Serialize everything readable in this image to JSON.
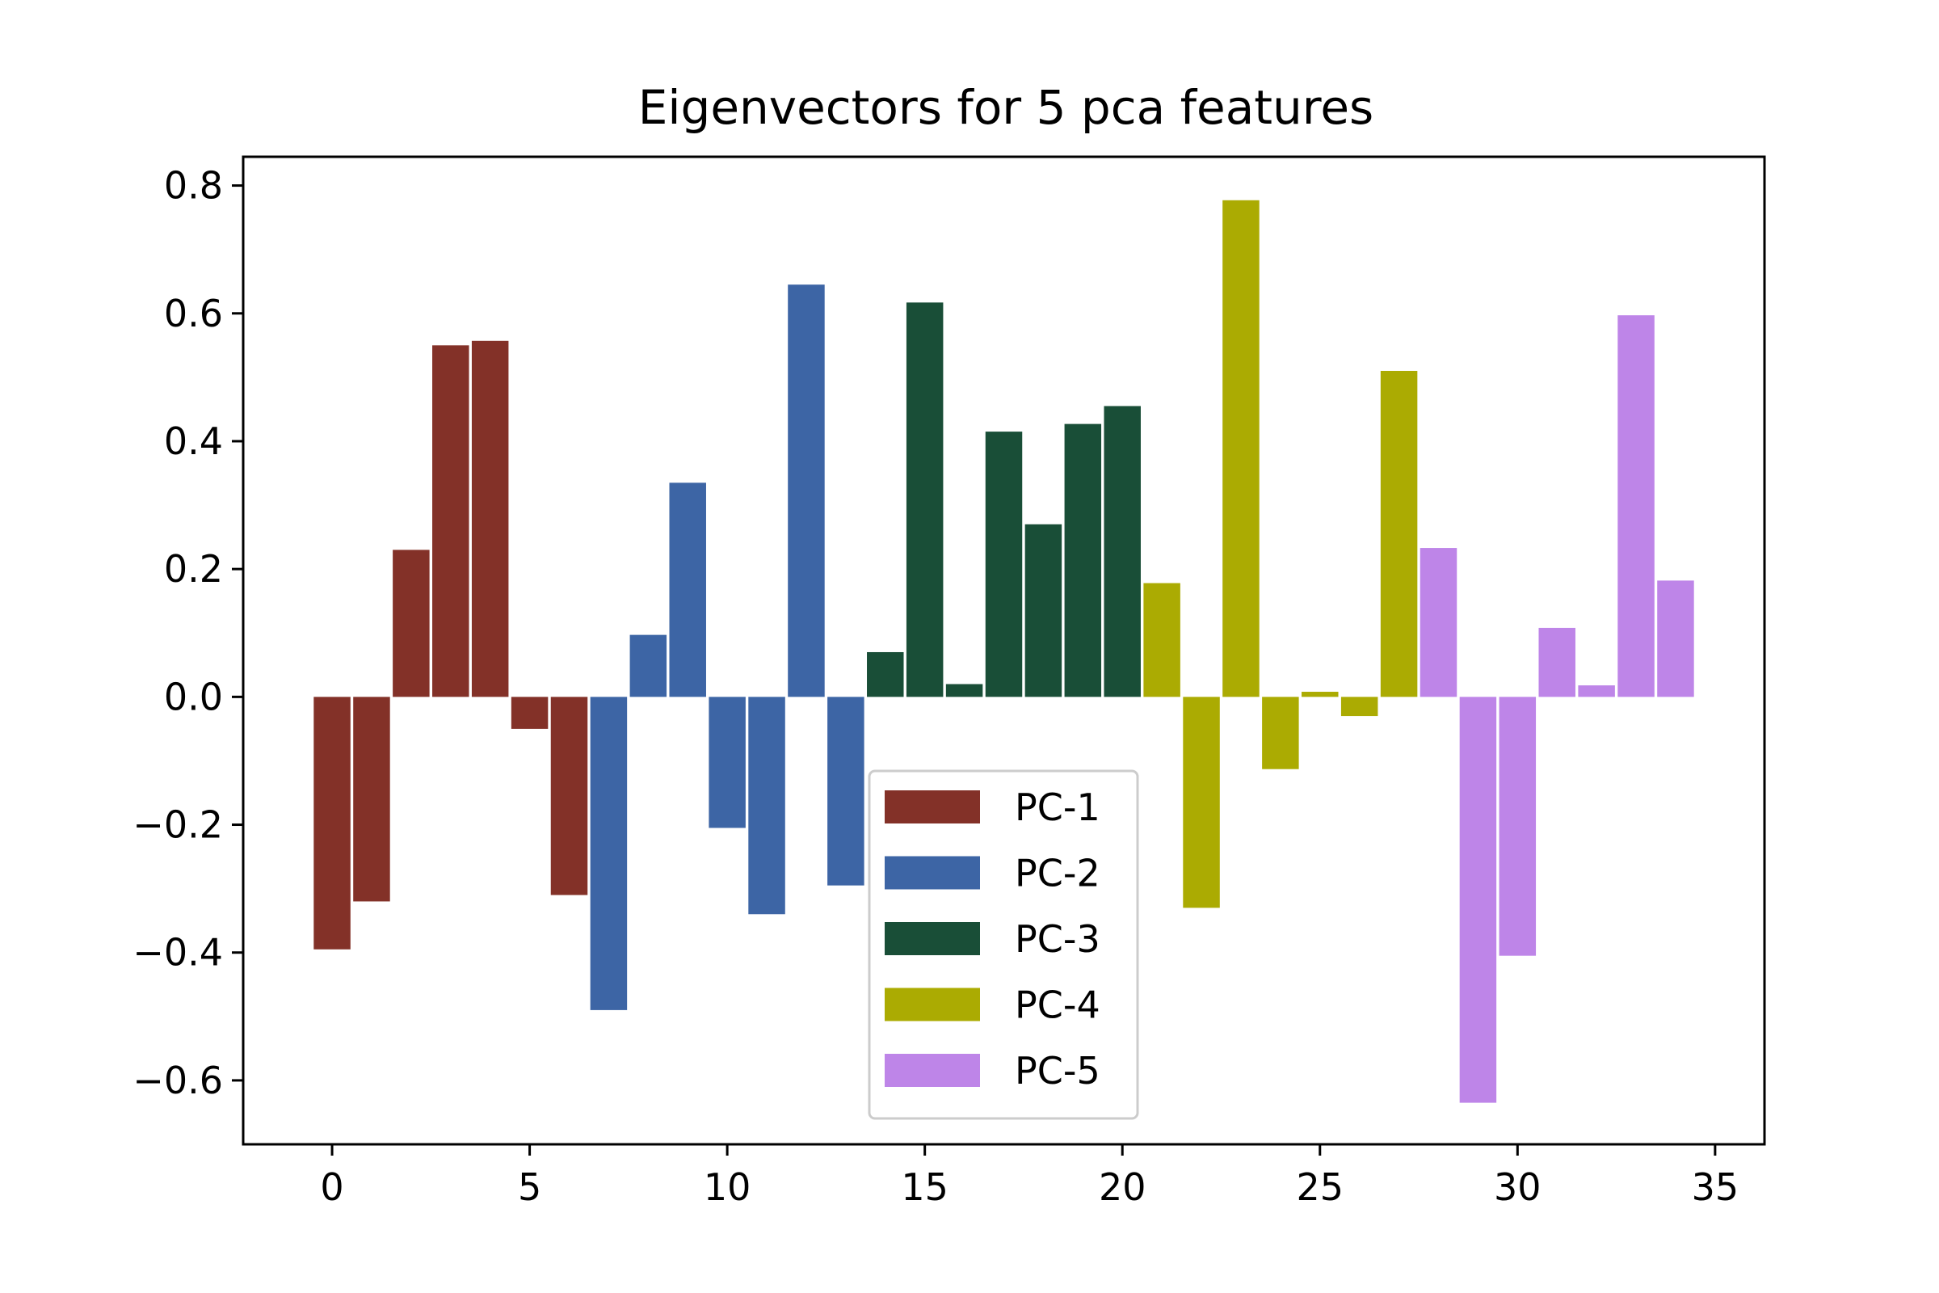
{
  "chart_data": {
    "type": "bar",
    "title": "Eigenvectors for 5 pca features",
    "xlabel": "",
    "ylabel": "",
    "xlim": [
      -2.25,
      36.25
    ],
    "ylim": [
      -0.7,
      0.845
    ],
    "x_ticks": [
      0,
      5,
      10,
      15,
      20,
      25,
      30,
      35
    ],
    "x_tick_labels": [
      "0",
      "5",
      "10",
      "15",
      "20",
      "25",
      "30",
      "35"
    ],
    "y_ticks": [
      0.8,
      0.6,
      0.4,
      0.2,
      0.0,
      -0.2,
      -0.4,
      -0.6
    ],
    "y_tick_labels": [
      "0.8",
      "0.6",
      "0.4",
      "0.2",
      "0.0",
      "−0.2",
      "−0.4",
      "−0.6"
    ],
    "grid": false,
    "legend_position": "lower-center",
    "series": [
      {
        "name": "PC-1",
        "color": "#833128",
        "x": [
          0,
          1,
          2,
          3,
          4,
          5,
          6
        ],
        "values": [
          -0.395,
          -0.32,
          0.23,
          0.55,
          0.557,
          -0.05,
          -0.31
        ]
      },
      {
        "name": "PC-2",
        "color": "#3d65a5",
        "x": [
          7,
          8,
          9,
          10,
          11,
          12,
          13
        ],
        "values": [
          -0.49,
          0.097,
          0.335,
          -0.205,
          -0.34,
          0.645,
          -0.295
        ]
      },
      {
        "name": "PC-3",
        "color": "#194e37",
        "x": [
          14,
          15,
          16,
          17,
          18,
          19,
          20
        ],
        "values": [
          0.07,
          0.617,
          0.02,
          0.415,
          0.27,
          0.427,
          0.455
        ]
      },
      {
        "name": "PC-4",
        "color": "#abab02",
        "x": [
          21,
          22,
          23,
          24,
          25,
          26,
          27
        ],
        "values": [
          0.178,
          -0.33,
          0.777,
          -0.113,
          0.008,
          -0.03,
          0.51
        ]
      },
      {
        "name": "PC-5",
        "color": "#be85e8",
        "x": [
          28,
          29,
          30,
          31,
          32,
          33,
          34
        ],
        "values": [
          0.233,
          -0.635,
          -0.405,
          0.108,
          0.018,
          0.597,
          0.182
        ]
      }
    ]
  }
}
